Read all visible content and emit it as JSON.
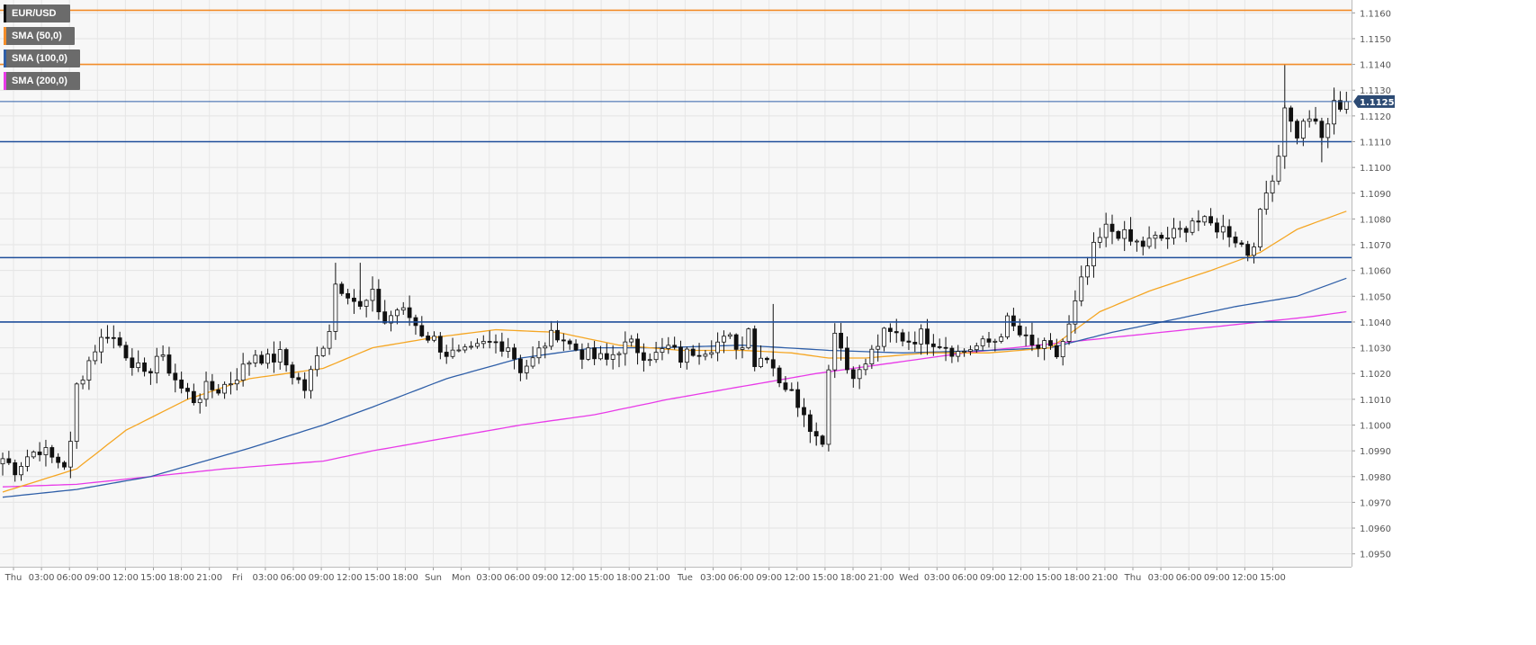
{
  "chart_data": {
    "type": "candlestick",
    "symbol": "EUR/USD",
    "indicators": [
      {
        "name": "SMA (50,0)",
        "color": "#f5a623"
      },
      {
        "name": "SMA (100,0)",
        "color": "#2f5fa8"
      },
      {
        "name": "SMA (200,0)",
        "color": "#e83ae8"
      }
    ],
    "legend_swatches": [
      "#111111",
      "#f28c28",
      "#2f5fa8",
      "#e83ae8"
    ],
    "ylim": [
      1.0945,
      1.1165
    ],
    "y_ticks": [
      "1.0950",
      "1.0960",
      "1.0970",
      "1.0980",
      "1.0990",
      "1.1000",
      "1.1010",
      "1.1020",
      "1.1030",
      "1.1040",
      "1.1050",
      "1.1060",
      "1.1070",
      "1.1080",
      "1.1090",
      "1.1100",
      "1.1110",
      "1.1120",
      "1.1130",
      "1.1140",
      "1.1150",
      "1.1160"
    ],
    "x_labels": [
      "Thu",
      "03:00",
      "06:00",
      "09:00",
      "12:00",
      "15:00",
      "18:00",
      "21:00",
      "Fri",
      "03:00",
      "06:00",
      "09:00",
      "12:00",
      "15:00",
      "18:00",
      "Sun",
      "Mon",
      "03:00",
      "06:00",
      "09:00",
      "12:00",
      "15:00",
      "18:00",
      "21:00",
      "Tue",
      "03:00",
      "06:00",
      "09:00",
      "12:00",
      "15:00",
      "18:00",
      "21:00",
      "Wed",
      "03:00",
      "06:00",
      "09:00",
      "12:00",
      "15:00",
      "18:00",
      "21:00",
      "Thu",
      "03:00",
      "06:00",
      "09:00",
      "12:00",
      "15:00"
    ],
    "current_price": "1.11256",
    "current_value": 1.11256,
    "horizontal_levels": [
      {
        "value": 1.1161,
        "color": "#f28c28"
      },
      {
        "value": 1.114,
        "color": "#f28c28"
      },
      {
        "value": 1.11256,
        "color": "#2f5fa8"
      },
      {
        "value": 1.111,
        "color": "#1f4e9a"
      },
      {
        "value": 1.1065,
        "color": "#1f4e9a"
      },
      {
        "value": 1.104,
        "color": "#1f4e9a"
      }
    ],
    "candle_bullish_color": "#ffffff",
    "candle_bearish_color": "#111111",
    "price_anchors": [
      [
        0,
        1.0987
      ],
      [
        2,
        1.0983
      ],
      [
        4,
        1.0988
      ],
      [
        6,
        1.0991
      ],
      [
        8,
        1.0987
      ],
      [
        10,
        1.0985
      ],
      [
        11,
        1.0992
      ],
      [
        12,
        1.1015
      ],
      [
        13,
        1.102
      ],
      [
        15,
        1.103
      ],
      [
        17,
        1.1036
      ],
      [
        19,
        1.1031
      ],
      [
        21,
        1.1025
      ],
      [
        23,
        1.1018
      ],
      [
        25,
        1.1027
      ],
      [
        27,
        1.1022
      ],
      [
        29,
        1.1014
      ],
      [
        31,
        1.101
      ],
      [
        33,
        1.1014
      ],
      [
        35,
        1.1014
      ],
      [
        37,
        1.1017
      ],
      [
        39,
        1.1022
      ],
      [
        41,
        1.1028
      ],
      [
        43,
        1.1025
      ],
      [
        45,
        1.1027
      ],
      [
        47,
        1.102
      ],
      [
        49,
        1.1014
      ],
      [
        51,
        1.1026
      ],
      [
        53,
        1.1038
      ],
      [
        54,
        1.1055
      ],
      [
        56,
        1.1052
      ],
      [
        58,
        1.1045
      ],
      [
        60,
        1.105
      ],
      [
        62,
        1.104
      ],
      [
        64,
        1.1045
      ],
      [
        66,
        1.1042
      ],
      [
        68,
        1.1036
      ],
      [
        70,
        1.1033
      ],
      [
        72,
        1.1028
      ],
      [
        74,
        1.1027
      ],
      [
        76,
        1.1028
      ],
      [
        78,
        1.1031
      ],
      [
        80,
        1.1032
      ],
      [
        82,
        1.1031
      ],
      [
        84,
        1.1022
      ],
      [
        86,
        1.1025
      ],
      [
        88,
        1.1032
      ],
      [
        90,
        1.1036
      ],
      [
        92,
        1.1031
      ],
      [
        94,
        1.1028
      ],
      [
        96,
        1.1026
      ],
      [
        98,
        1.1025
      ],
      [
        100,
        1.103
      ],
      [
        102,
        1.1031
      ],
      [
        104,
        1.1028
      ],
      [
        106,
        1.1027
      ],
      [
        108,
        1.103
      ],
      [
        110,
        1.1026
      ],
      [
        112,
        1.1029
      ],
      [
        114,
        1.103
      ],
      [
        116,
        1.1032
      ],
      [
        118,
        1.1033
      ],
      [
        120,
        1.103
      ],
      [
        121,
        1.104
      ],
      [
        122,
        1.1024
      ],
      [
        124,
        1.1028
      ],
      [
        126,
        1.1018
      ],
      [
        128,
        1.1012
      ],
      [
        130,
        1.1006
      ],
      [
        132,
        1.0995
      ],
      [
        133,
        1.0995
      ],
      [
        134,
        1.1022
      ],
      [
        135,
        1.1038
      ],
      [
        137,
        1.1022
      ],
      [
        139,
        1.102
      ],
      [
        141,
        1.1028
      ],
      [
        143,
        1.1035
      ],
      [
        145,
        1.1035
      ],
      [
        147,
        1.1033
      ],
      [
        149,
        1.1035
      ],
      [
        151,
        1.1033
      ],
      [
        153,
        1.1031
      ],
      [
        155,
        1.1028
      ],
      [
        157,
        1.103
      ],
      [
        159,
        1.1031
      ],
      [
        161,
        1.1033
      ],
      [
        163,
        1.104
      ],
      [
        165,
        1.1035
      ],
      [
        167,
        1.103
      ],
      [
        169,
        1.103
      ],
      [
        171,
        1.1027
      ],
      [
        173,
        1.1038
      ],
      [
        175,
        1.1055
      ],
      [
        177,
        1.1068
      ],
      [
        179,
        1.1076
      ],
      [
        181,
        1.1075
      ],
      [
        183,
        1.1071
      ],
      [
        185,
        1.107
      ],
      [
        187,
        1.1072
      ],
      [
        189,
        1.1073
      ],
      [
        191,
        1.1075
      ],
      [
        193,
        1.108
      ],
      [
        195,
        1.1078
      ],
      [
        197,
        1.1077
      ],
      [
        199,
        1.1075
      ],
      [
        201,
        1.107
      ],
      [
        202,
        1.1067
      ],
      [
        203,
        1.1072
      ],
      [
        205,
        1.109
      ],
      [
        207,
        1.1105
      ],
      [
        208,
        1.1125
      ],
      [
        209,
        1.1117
      ],
      [
        210,
        1.1113
      ],
      [
        212,
        1.112
      ],
      [
        214,
        1.1111
      ],
      [
        216,
        1.1124
      ],
      [
        218,
        1.1125
      ]
    ],
    "sma50": [
      [
        0,
        1.0974
      ],
      [
        12,
        1.0983
      ],
      [
        20,
        1.0998
      ],
      [
        30,
        1.101
      ],
      [
        40,
        1.1018
      ],
      [
        52,
        1.1022
      ],
      [
        60,
        1.103
      ],
      [
        70,
        1.1034
      ],
      [
        80,
        1.1037
      ],
      [
        90,
        1.1036
      ],
      [
        100,
        1.1031
      ],
      [
        110,
        1.1029
      ],
      [
        120,
        1.1029
      ],
      [
        128,
        1.1028
      ],
      [
        134,
        1.1026
      ],
      [
        140,
        1.1026
      ],
      [
        150,
        1.1028
      ],
      [
        160,
        1.1028
      ],
      [
        170,
        1.103
      ],
      [
        178,
        1.1044
      ],
      [
        186,
        1.1052
      ],
      [
        196,
        1.106
      ],
      [
        204,
        1.1067
      ],
      [
        210,
        1.1076
      ],
      [
        218,
        1.1083
      ]
    ],
    "sma100": [
      [
        0,
        1.0972
      ],
      [
        12,
        1.0975
      ],
      [
        24,
        1.098
      ],
      [
        40,
        1.0991
      ],
      [
        52,
        1.1
      ],
      [
        60,
        1.1007
      ],
      [
        72,
        1.1018
      ],
      [
        84,
        1.1026
      ],
      [
        96,
        1.103
      ],
      [
        106,
        1.103
      ],
      [
        120,
        1.1031
      ],
      [
        134,
        1.1029
      ],
      [
        146,
        1.1028
      ],
      [
        160,
        1.1029
      ],
      [
        170,
        1.103
      ],
      [
        180,
        1.1036
      ],
      [
        190,
        1.1041
      ],
      [
        200,
        1.1046
      ],
      [
        210,
        1.105
      ],
      [
        218,
        1.1057
      ]
    ],
    "sma200": [
      [
        0,
        1.0976
      ],
      [
        12,
        1.0977
      ],
      [
        24,
        1.098
      ],
      [
        36,
        1.0983
      ],
      [
        52,
        1.0986
      ],
      [
        60,
        1.099
      ],
      [
        72,
        1.0995
      ],
      [
        84,
        1.1
      ],
      [
        96,
        1.1004
      ],
      [
        108,
        1.101
      ],
      [
        120,
        1.1015
      ],
      [
        132,
        1.102
      ],
      [
        144,
        1.1024
      ],
      [
        156,
        1.1028
      ],
      [
        168,
        1.1031
      ],
      [
        180,
        1.1034
      ],
      [
        192,
        1.1037
      ],
      [
        204,
        1.104
      ],
      [
        212,
        1.1042
      ],
      [
        218,
        1.1044
      ]
    ],
    "grid": true
  }
}
